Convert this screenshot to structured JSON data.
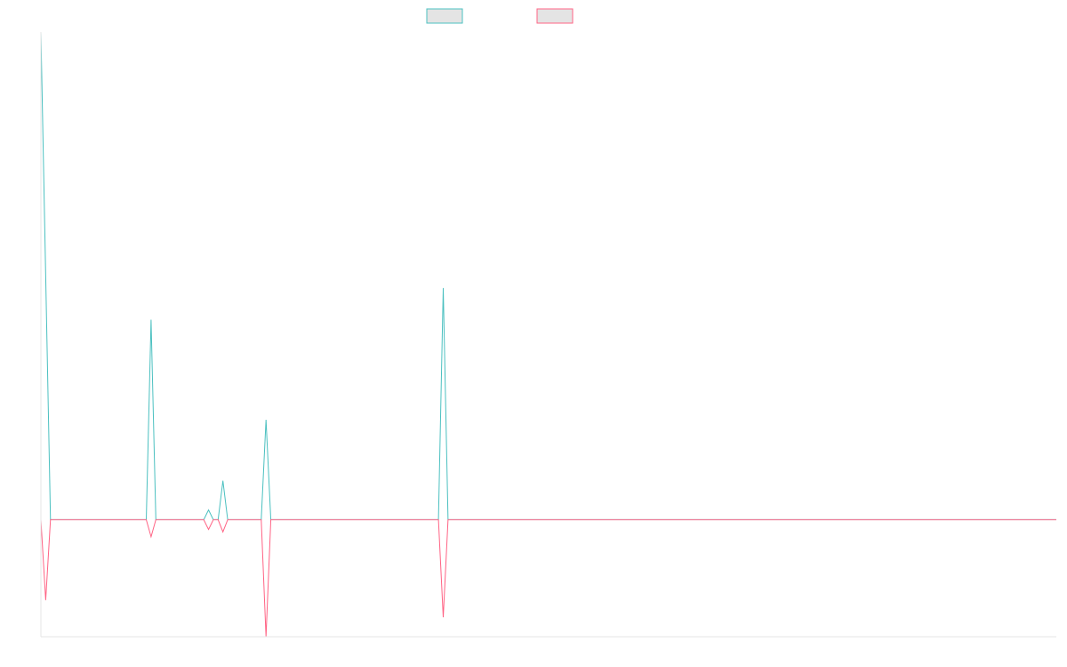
{
  "chart_data": {
    "type": "line",
    "title": "",
    "xlabel": "",
    "ylabel": "",
    "x_range": [
      0,
      212
    ],
    "y_range": [
      -24,
      100
    ],
    "grid": false,
    "legend": {
      "position": "top-center"
    },
    "series": [
      {
        "name": "",
        "color": "#4bc0c0",
        "legend_fill": "#e4e4e4",
        "points": [
          [
            0,
            100
          ],
          [
            2,
            0
          ],
          [
            22,
            0
          ],
          [
            23,
            41
          ],
          [
            24,
            0
          ],
          [
            34,
            0
          ],
          [
            35,
            2
          ],
          [
            36,
            0
          ],
          [
            37,
            0
          ],
          [
            38,
            8
          ],
          [
            39,
            0
          ],
          [
            46,
            0
          ],
          [
            47,
            20.5
          ],
          [
            48,
            0
          ],
          [
            83,
            0
          ],
          [
            84,
            47.5
          ],
          [
            85,
            0
          ],
          [
            212,
            0
          ]
        ]
      },
      {
        "name": "",
        "color": "#ff6384",
        "legend_fill": "#e4e4e4",
        "points": [
          [
            0,
            0
          ],
          [
            1,
            -16.5
          ],
          [
            2,
            0
          ],
          [
            22,
            0
          ],
          [
            23,
            -3.5
          ],
          [
            24,
            0
          ],
          [
            34,
            0
          ],
          [
            35,
            -2
          ],
          [
            36,
            0
          ],
          [
            37,
            0
          ],
          [
            38,
            -2.5
          ],
          [
            39,
            0
          ],
          [
            46,
            0
          ],
          [
            47,
            -24
          ],
          [
            48,
            0
          ],
          [
            83,
            0
          ],
          [
            84,
            -20
          ],
          [
            85,
            0
          ],
          [
            212,
            0
          ]
        ]
      }
    ]
  }
}
